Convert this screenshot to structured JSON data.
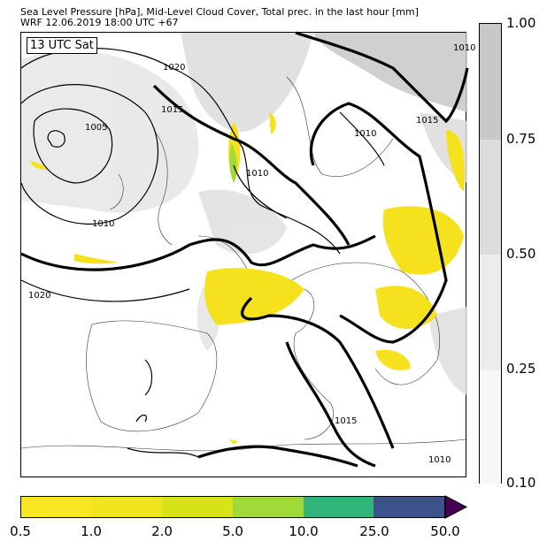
{
  "header": {
    "title": "Sea Level Pressure [hPa], Mid-Level Cloud Cover, Total prec. in the last hour [mm]",
    "subtitle": "WRF 12.06.2019 18:00 UTC +67"
  },
  "map": {
    "time_label": "13 UTC Sat",
    "isobar_labels": [
      "1020",
      "1015",
      "1005",
      "1010",
      "1020",
      "1010",
      "1010",
      "1015",
      "1010",
      "1015",
      "1010"
    ],
    "precip_color": "#f5e11e",
    "cloud_color": "#c8c8c8"
  },
  "cloud_colorbar": {
    "ticks": [
      "1.00",
      "0.75",
      "0.50",
      "0.25",
      "0.10"
    ],
    "colors": [
      "#c8c8c8",
      "#dcdcdc",
      "#ececec",
      "#f7f7f7"
    ]
  },
  "precip_colorbar": {
    "ticks": [
      "0.5",
      "1.0",
      "2.0",
      "5.0",
      "10.0",
      "25.0",
      "50.0"
    ],
    "colors": [
      "#fae622",
      "#f0e51c",
      "#d8e219",
      "#a0da39",
      "#31b57b",
      "#3b528b",
      "#440154"
    ]
  }
}
